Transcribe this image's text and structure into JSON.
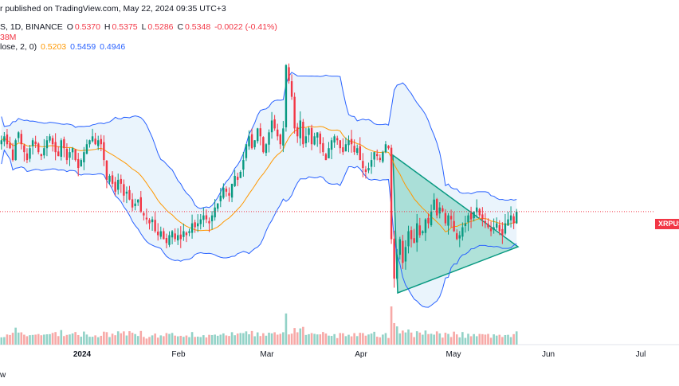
{
  "header": {
    "published": "r published on TradingView.com, May 22, 2024 09:35 UTC+3",
    "symbol_line": "S, 1D, BINANCE",
    "ohlc": [
      {
        "k": "O",
        "v": "0.5370"
      },
      {
        "k": "H",
        "v": "0.5375"
      },
      {
        "k": "L",
        "v": "0.5286"
      },
      {
        "k": "C",
        "v": "0.5348"
      }
    ],
    "change": "-0.0022 (-0.41%)",
    "vol_fragment": "38M",
    "bb_label": "lose, 2, 0)",
    "bb_basis": "0.5203",
    "bb_upper": "0.5459",
    "bb_lower": "0.4946"
  },
  "symbol_badge": "XRPUSDT",
  "footer_text": "w",
  "colors": {
    "up": "#089981",
    "down": "#f23645",
    "up_vol": "#92d2c7",
    "down_vol": "#f7a9a7",
    "basis": "#ff9800",
    "band": "#2962ff",
    "band_fill": "#e3f0fb",
    "triangle_fill": "#8fd6c9",
    "triangle_stroke": "#089981",
    "price_line": "#f23645"
  },
  "chart_data": {
    "type": "candlestick",
    "timeframe": "1D",
    "exchange": "BINANCE",
    "x_ticks": [
      "2024",
      "Feb",
      "Mar",
      "Apr",
      "May",
      "Jun",
      "Jul"
    ],
    "last_close": 0.5348,
    "bollinger": {
      "basis": 0.5203,
      "upper": 0.5459,
      "lower": 0.4946
    },
    "close_series": [
      0.625,
      0.63,
      0.62,
      0.615,
      0.6,
      0.625,
      0.635,
      0.62,
      0.61,
      0.6,
      0.615,
      0.625,
      0.62,
      0.61,
      0.605,
      0.615,
      0.625,
      0.63,
      0.62,
      0.61,
      0.605,
      0.625,
      0.615,
      0.6,
      0.61,
      0.615,
      0.6,
      0.59,
      0.6,
      0.61,
      0.62,
      0.625,
      0.63,
      0.62,
      0.625,
      0.62,
      0.6,
      0.575,
      0.58,
      0.57,
      0.56,
      0.575,
      0.57,
      0.555,
      0.56,
      0.55,
      0.54,
      0.545,
      0.55,
      0.535,
      0.53,
      0.525,
      0.52,
      0.525,
      0.51,
      0.505,
      0.51,
      0.5,
      0.495,
      0.505,
      0.51,
      0.5,
      0.505,
      0.5,
      0.51,
      0.505,
      0.51,
      0.52,
      0.515,
      0.52,
      0.525,
      0.53,
      0.525,
      0.52,
      0.53,
      0.54,
      0.545,
      0.555,
      0.565,
      0.56,
      0.555,
      0.57,
      0.58,
      0.575,
      0.585,
      0.6,
      0.62,
      0.63,
      0.615,
      0.625,
      0.64,
      0.63,
      0.61,
      0.62,
      0.635,
      0.65,
      0.64,
      0.63,
      0.62,
      0.64,
      0.72,
      0.7,
      0.68,
      0.64,
      0.63,
      0.65,
      0.62,
      0.63,
      0.64,
      0.62,
      0.63,
      0.635,
      0.62,
      0.61,
      0.6,
      0.615,
      0.625,
      0.63,
      0.625,
      0.615,
      0.61,
      0.62,
      0.625,
      0.62,
      0.61,
      0.615,
      0.6,
      0.59,
      0.585,
      0.59,
      0.6,
      0.61,
      0.605,
      0.6,
      0.61,
      0.62,
      0.615,
      0.5,
      0.45,
      0.48,
      0.5,
      0.47,
      0.49,
      0.51,
      0.5,
      0.495,
      0.52,
      0.505,
      0.51,
      0.525,
      0.52,
      0.535,
      0.55,
      0.53,
      0.54,
      0.535,
      0.52,
      0.53,
      0.525,
      0.51,
      0.5,
      0.505,
      0.515,
      0.52,
      0.53,
      0.525,
      0.535,
      0.54,
      0.53,
      0.525,
      0.52,
      0.515,
      0.51,
      0.515,
      0.52,
      0.51,
      0.505,
      0.52,
      0.525,
      0.53,
      0.52,
      0.5348
    ],
    "annotations": [
      "symmetrical triangle"
    ]
  }
}
